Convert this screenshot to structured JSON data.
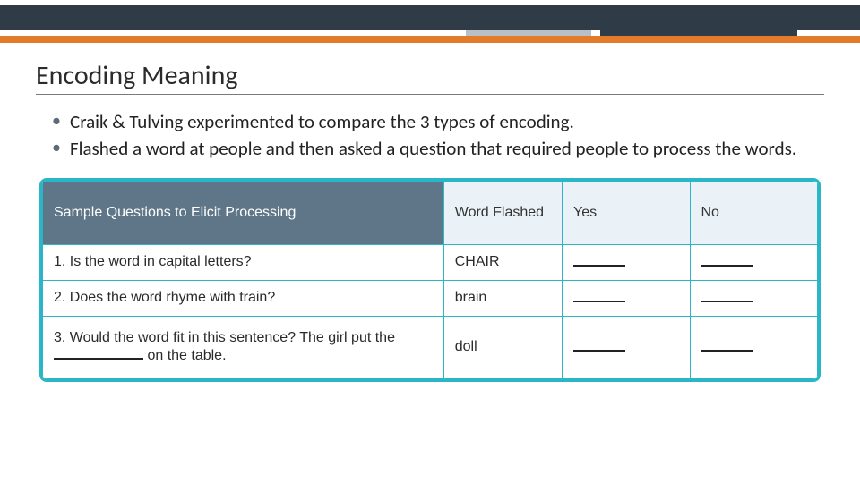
{
  "colors": {
    "dark_header": "#2f3b47",
    "orange_bar": "#e37b2a",
    "teal_border": "#2ab6c6",
    "header_cell_bg": "#5f7688",
    "header_row_bg": "#eaf2f7",
    "gray_notch": "#b8bfc6"
  },
  "title": "Encoding Meaning",
  "bullets": [
    "Craik & Tulving experimented to compare the 3 types of encoding.",
    "Flashed a word at people and then asked a question that required people to process the words."
  ],
  "table": {
    "headers": {
      "questions": "Sample Questions to Elicit Processing",
      "word": "Word Flashed",
      "yes": "Yes",
      "no": "No"
    },
    "rows": [
      {
        "num": "1.",
        "question": "Is the word in capital letters?",
        "word": "CHAIR"
      },
      {
        "num": "2.",
        "question": "Does the word rhyme with train?",
        "word": "brain"
      },
      {
        "num": "3.",
        "question_pre": "Would the word fit in this sentence? The girl put the ",
        "question_post": " on the table.",
        "word": "doll",
        "has_blank": true
      }
    ]
  }
}
